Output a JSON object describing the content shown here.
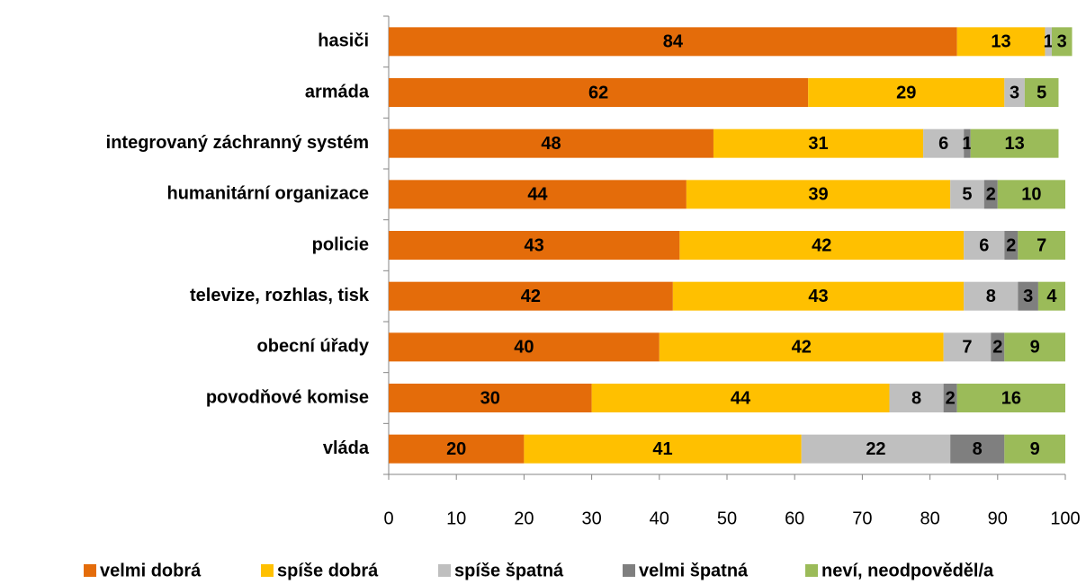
{
  "chart_data": {
    "type": "stacked_bar_horizontal",
    "categories": [
      "hasiči",
      "armáda",
      "integrovaný záchranný systém",
      "humanitární organizace",
      "policie",
      "televize, rozhlas, tisk",
      "obecní úřady",
      "povodňové komise",
      "vláda"
    ],
    "series": [
      {
        "name": "velmi dobrá",
        "color": "#e46c0a",
        "values": [
          84,
          62,
          48,
          44,
          43,
          42,
          40,
          30,
          20
        ]
      },
      {
        "name": "spíše dobrá",
        "color": "#ffc000",
        "values": [
          13,
          29,
          31,
          39,
          42,
          43,
          42,
          44,
          41
        ]
      },
      {
        "name": "spíše špatná",
        "color": "#bfbfbf",
        "values": [
          1,
          3,
          6,
          5,
          6,
          8,
          7,
          8,
          22
        ]
      },
      {
        "name": "velmi špatná",
        "color": "#7f7f7f",
        "values": [
          null,
          null,
          1,
          2,
          2,
          3,
          2,
          2,
          8
        ]
      },
      {
        "name": "neví, neodpověděl/a",
        "color": "#9bbb59",
        "values": [
          3,
          5,
          13,
          10,
          7,
          4,
          9,
          16,
          9
        ]
      }
    ],
    "xlim": [
      0,
      100
    ],
    "xticks": [
      0,
      10,
      20,
      30,
      40,
      50,
      60,
      70,
      80,
      90,
      100
    ],
    "legend": "bottom"
  }
}
